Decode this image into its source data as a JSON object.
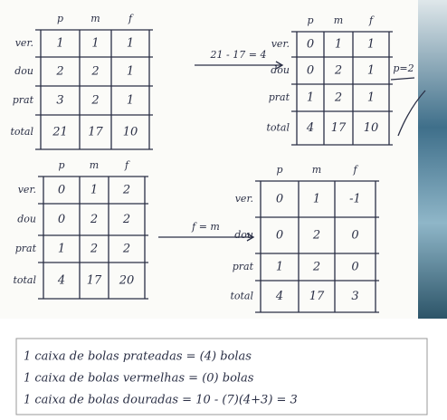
{
  "tables": [
    {
      "headers": [
        "p",
        "m",
        "f"
      ],
      "rows": [
        {
          "label": "ver.",
          "cells": [
            1,
            1,
            1
          ]
        },
        {
          "label": "dou",
          "cells": [
            2,
            2,
            1
          ]
        },
        {
          "label": "prat",
          "cells": [
            3,
            2,
            1
          ]
        },
        {
          "label": "total",
          "cells": [
            21,
            17,
            10
          ]
        }
      ]
    },
    {
      "headers": [
        "p",
        "m",
        "f"
      ],
      "rows": [
        {
          "label": "ver.",
          "cells": [
            0,
            1,
            1
          ]
        },
        {
          "label": "dou",
          "cells": [
            0,
            2,
            1
          ]
        },
        {
          "label": "prat",
          "cells": [
            1,
            2,
            1
          ]
        },
        {
          "label": "total",
          "cells": [
            4,
            17,
            10
          ]
        }
      ]
    },
    {
      "headers": [
        "p",
        "m",
        "f"
      ],
      "rows": [
        {
          "label": "ver.",
          "cells": [
            0,
            1,
            2
          ]
        },
        {
          "label": "dou",
          "cells": [
            0,
            2,
            2
          ]
        },
        {
          "label": "prat",
          "cells": [
            1,
            2,
            2
          ]
        },
        {
          "label": "total",
          "cells": [
            4,
            17,
            20
          ]
        }
      ]
    },
    {
      "headers": [
        "p",
        "m",
        "f"
      ],
      "rows": [
        {
          "label": "ver.",
          "cells": [
            0,
            1,
            -1
          ]
        },
        {
          "label": "dou",
          "cells": [
            0,
            2,
            0
          ]
        },
        {
          "label": "prat",
          "cells": [
            1,
            2,
            0
          ]
        },
        {
          "label": "total",
          "cells": [
            4,
            17,
            3
          ]
        }
      ]
    }
  ],
  "arrows": [
    {
      "label": "21 - 17 = 4"
    },
    {
      "label": "f = m"
    }
  ],
  "note": "p=2",
  "lines": [
    "1 caixa de bolas prateadas = (4) bolas",
    "1 caixa de bolas vermelhas = (0) bolas",
    "1 caixa de bolas douradas = 10 - (7)(4+3) = 3"
  ]
}
